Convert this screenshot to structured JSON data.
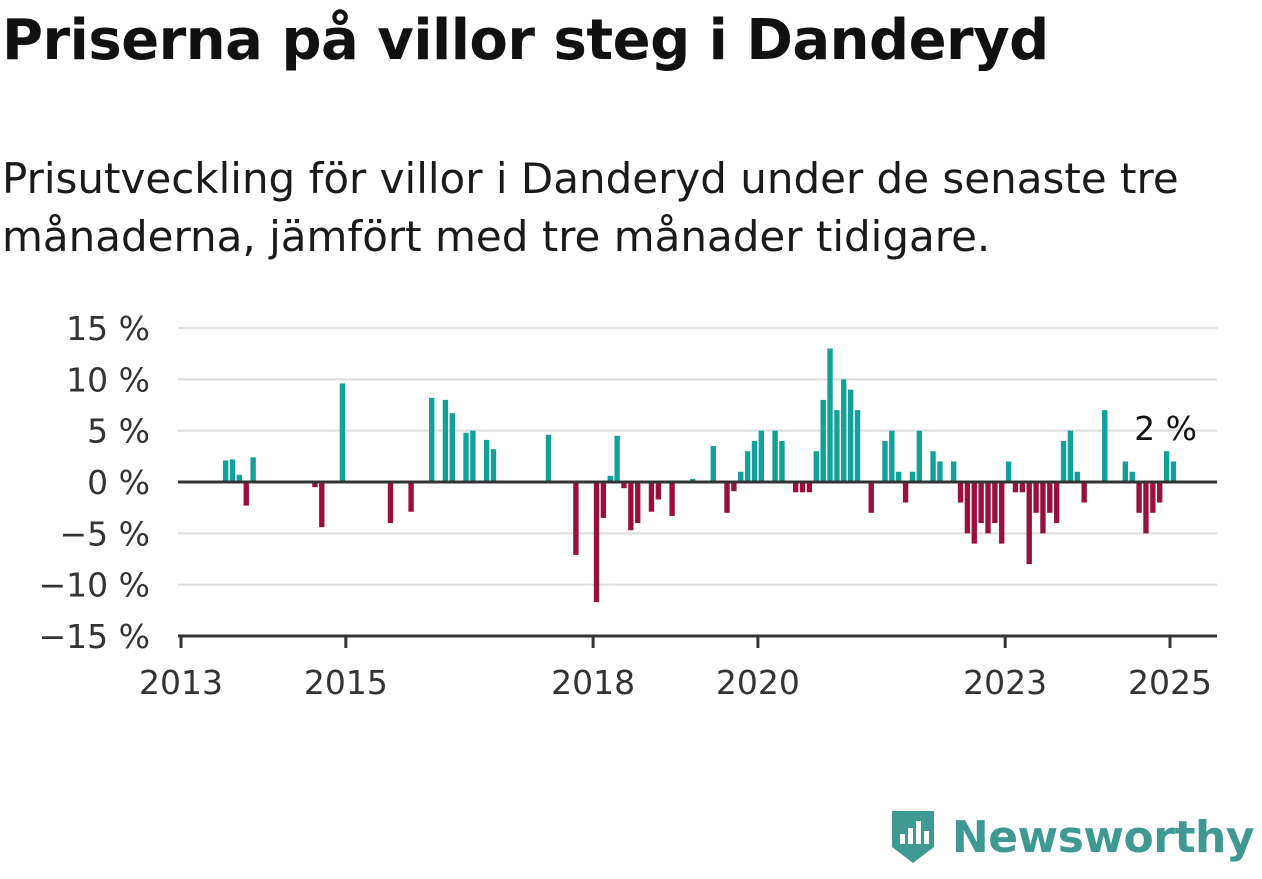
{
  "title": "Priserna på villor steg i Danderyd",
  "subtitle": "Prisutveckling för villor i Danderyd under de senaste tre månaderna, jämfört med tre månader tidigare.",
  "brand": {
    "name": "Newsworthy",
    "icon": "newsworthy-bar-chart-icon",
    "color": "#3f9993"
  },
  "colors": {
    "positive": "#12a19a",
    "negative": "#990f3d",
    "grid": "#dddddd",
    "axis": "#333333"
  },
  "chart_data": {
    "type": "bar",
    "x_axis": {
      "type": "date",
      "range": [
        "2013-01-01",
        "2025-06-01"
      ],
      "ticks": [
        {
          "value": "2013-01-01",
          "label": "2013"
        },
        {
          "value": "2015-01-01",
          "label": "2015"
        },
        {
          "value": "2018-01-01",
          "label": "2018"
        },
        {
          "value": "2020-01-01",
          "label": "2020"
        },
        {
          "value": "2023-01-01",
          "label": "2023"
        },
        {
          "value": "2025-01-01",
          "label": "2025"
        }
      ]
    },
    "y_axis": {
      "range": [
        -15,
        15
      ],
      "ticks": [
        {
          "value": 15,
          "label": "15 %"
        },
        {
          "value": 10,
          "label": "10 %"
        },
        {
          "value": 5,
          "label": "5 %"
        },
        {
          "value": 0,
          "label": "0 %"
        },
        {
          "value": -5,
          "label": "−5 %"
        },
        {
          "value": -10,
          "label": "−10 %"
        },
        {
          "value": -15,
          "label": "−15 %"
        }
      ]
    },
    "grid": true,
    "end_label": "2 %",
    "points": [
      {
        "date": "2013-07",
        "value": 2.1
      },
      {
        "date": "2013-08",
        "value": 2.2
      },
      {
        "date": "2013-09",
        "value": 0.7
      },
      {
        "date": "2013-10",
        "value": -2.3
      },
      {
        "date": "2013-11",
        "value": 2.4
      },
      {
        "date": "2014-08",
        "value": -0.5
      },
      {
        "date": "2014-09",
        "value": -4.4
      },
      {
        "date": "2014-12",
        "value": 9.6
      },
      {
        "date": "2015-07",
        "value": -4.0
      },
      {
        "date": "2015-10",
        "value": -2.9
      },
      {
        "date": "2016-01",
        "value": 8.2
      },
      {
        "date": "2016-03",
        "value": 8.0
      },
      {
        "date": "2016-04",
        "value": 6.7
      },
      {
        "date": "2016-06",
        "value": 4.8
      },
      {
        "date": "2016-07",
        "value": 5.0
      },
      {
        "date": "2016-09",
        "value": 4.1
      },
      {
        "date": "2016-10",
        "value": 3.2
      },
      {
        "date": "2017-06",
        "value": 4.6
      },
      {
        "date": "2017-10",
        "value": -7.1
      },
      {
        "date": "2018-01",
        "value": -11.7
      },
      {
        "date": "2018-02",
        "value": -3.5
      },
      {
        "date": "2018-03",
        "value": 0.6
      },
      {
        "date": "2018-04",
        "value": 4.5
      },
      {
        "date": "2018-05",
        "value": -0.6
      },
      {
        "date": "2018-06",
        "value": -4.7
      },
      {
        "date": "2018-07",
        "value": -4.0
      },
      {
        "date": "2018-09",
        "value": -2.9
      },
      {
        "date": "2018-10",
        "value": -1.7
      },
      {
        "date": "2018-12",
        "value": -3.3
      },
      {
        "date": "2019-03",
        "value": 0.3
      },
      {
        "date": "2019-06",
        "value": 3.5
      },
      {
        "date": "2019-08",
        "value": -3.0
      },
      {
        "date": "2019-09",
        "value": -0.9
      },
      {
        "date": "2019-10",
        "value": 1.0
      },
      {
        "date": "2019-11",
        "value": 3.0
      },
      {
        "date": "2019-12",
        "value": 4.0
      },
      {
        "date": "2020-01",
        "value": 5.0
      },
      {
        "date": "2020-03",
        "value": 5.0
      },
      {
        "date": "2020-04",
        "value": 4.0
      },
      {
        "date": "2020-06",
        "value": -1.0
      },
      {
        "date": "2020-07",
        "value": -1.0
      },
      {
        "date": "2020-08",
        "value": -1.0
      },
      {
        "date": "2020-09",
        "value": 3.0
      },
      {
        "date": "2020-10",
        "value": 8.0
      },
      {
        "date": "2020-11",
        "value": 13.0
      },
      {
        "date": "2020-12",
        "value": 7.0
      },
      {
        "date": "2021-01",
        "value": 10.0
      },
      {
        "date": "2021-02",
        "value": 9.0
      },
      {
        "date": "2021-03",
        "value": 7.0
      },
      {
        "date": "2021-05",
        "value": -3.0
      },
      {
        "date": "2021-07",
        "value": 4.0
      },
      {
        "date": "2021-08",
        "value": 5.0
      },
      {
        "date": "2021-09",
        "value": 1.0
      },
      {
        "date": "2021-10",
        "value": -2.0
      },
      {
        "date": "2021-11",
        "value": 1.0
      },
      {
        "date": "2021-12",
        "value": 5.0
      },
      {
        "date": "2022-02",
        "value": 3.0
      },
      {
        "date": "2022-03",
        "value": 2.0
      },
      {
        "date": "2022-05",
        "value": 2.0
      },
      {
        "date": "2022-06",
        "value": -2.0
      },
      {
        "date": "2022-07",
        "value": -5.0
      },
      {
        "date": "2022-08",
        "value": -6.0
      },
      {
        "date": "2022-09",
        "value": -4.0
      },
      {
        "date": "2022-10",
        "value": -5.0
      },
      {
        "date": "2022-11",
        "value": -4.0
      },
      {
        "date": "2022-12",
        "value": -6.0
      },
      {
        "date": "2023-01",
        "value": 2.0
      },
      {
        "date": "2023-02",
        "value": -1.0
      },
      {
        "date": "2023-03",
        "value": -1.0
      },
      {
        "date": "2023-04",
        "value": -8.0
      },
      {
        "date": "2023-05",
        "value": -3.0
      },
      {
        "date": "2023-06",
        "value": -5.0
      },
      {
        "date": "2023-07",
        "value": -3.0
      },
      {
        "date": "2023-08",
        "value": -4.0
      },
      {
        "date": "2023-09",
        "value": 4.0
      },
      {
        "date": "2023-10",
        "value": 5.0
      },
      {
        "date": "2023-11",
        "value": 1.0
      },
      {
        "date": "2023-12",
        "value": -2.0
      },
      {
        "date": "2024-03",
        "value": 7.0
      },
      {
        "date": "2024-06",
        "value": 2.0
      },
      {
        "date": "2024-07",
        "value": 1.0
      },
      {
        "date": "2024-08",
        "value": -3.0
      },
      {
        "date": "2024-09",
        "value": -5.0
      },
      {
        "date": "2024-10",
        "value": -3.0
      },
      {
        "date": "2024-11",
        "value": -2.0
      },
      {
        "date": "2024-12",
        "value": 3.0
      },
      {
        "date": "2025-01",
        "value": 2.0
      }
    ]
  }
}
